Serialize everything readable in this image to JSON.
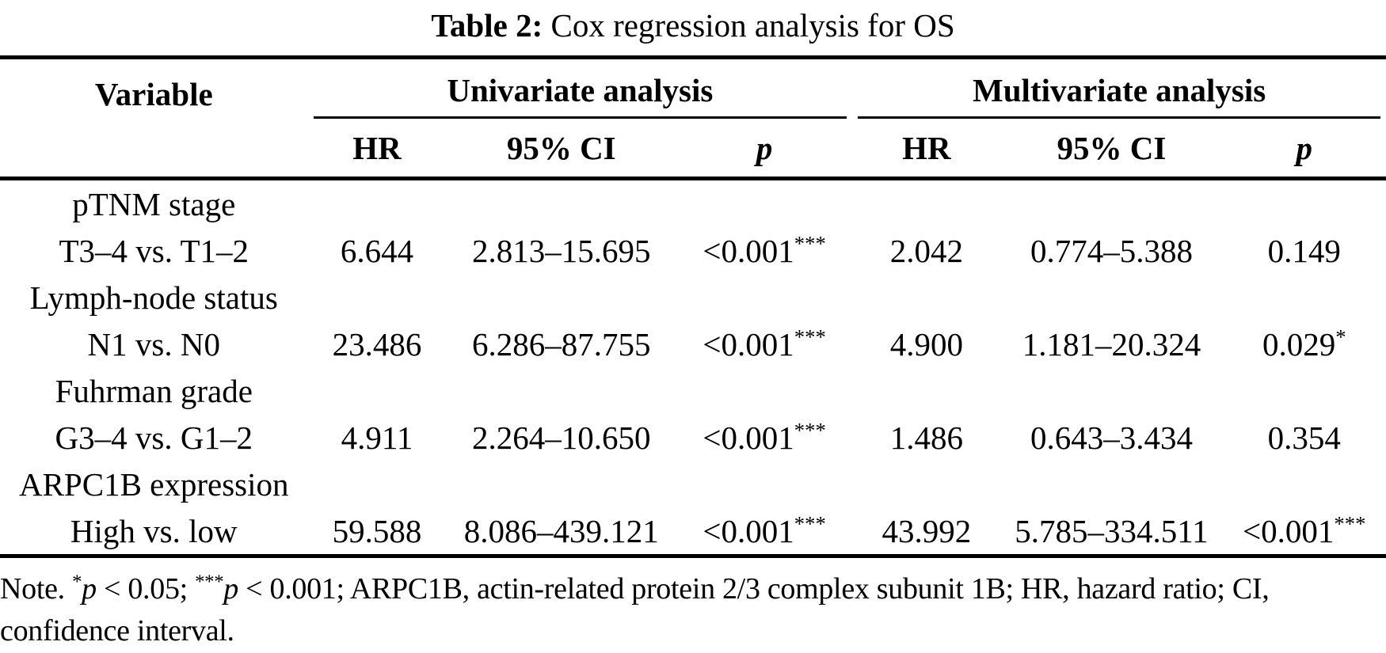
{
  "title": {
    "label": "Table 2:",
    "text": "Cox regression analysis for OS"
  },
  "table": {
    "variable_header": "Variable",
    "groups": [
      {
        "label": "Univariate analysis"
      },
      {
        "label": "Multivariate analysis"
      }
    ],
    "sub_headers": [
      "HR",
      "95% CI",
      "p",
      "HR",
      "95% CI",
      "p"
    ],
    "rows": [
      {
        "variable": "pTNM stage",
        "cells": [
          "",
          "",
          "",
          "",
          "",
          ""
        ]
      },
      {
        "variable": "T3–4 vs. T1–2",
        "cells": [
          "6.644",
          "2.813–15.695",
          "<0.001***",
          "2.042",
          "0.774–5.388",
          "0.149"
        ]
      },
      {
        "variable": "Lymph-node status",
        "cells": [
          "",
          "",
          "",
          "",
          "",
          ""
        ]
      },
      {
        "variable": "N1 vs. N0",
        "cells": [
          "23.486",
          "6.286–87.755",
          "<0.001***",
          "4.900",
          "1.181–20.324",
          "0.029*"
        ]
      },
      {
        "variable": "Fuhrman grade",
        "cells": [
          "",
          "",
          "",
          "",
          "",
          ""
        ]
      },
      {
        "variable": "G3–4 vs. G1–2",
        "cells": [
          "4.911",
          "2.264–10.650",
          "<0.001***",
          "1.486",
          "0.643–3.434",
          "0.354"
        ]
      },
      {
        "variable": "ARPC1B expression",
        "cells": [
          "",
          "",
          "",
          "",
          "",
          ""
        ]
      },
      {
        "variable": "High vs. low",
        "cells": [
          "59.588",
          "8.086–439.121",
          "<0.001***",
          "43.992",
          "5.785–334.511",
          "<0.001***"
        ]
      }
    ]
  },
  "footnote": {
    "parts": [
      {
        "text": "Note. "
      },
      {
        "sup": "*"
      },
      {
        "italic": "p"
      },
      {
        "text": " < 0.05; "
      },
      {
        "sup": "***"
      },
      {
        "italic": "p"
      },
      {
        "text": " < 0.001; ARPC1B, actin-related protein 2/3 complex subunit 1B; HR, hazard ratio; CI, confidence interval."
      }
    ]
  },
  "colors": {
    "text": "#000000",
    "background": "#ffffff",
    "rule": "#000000"
  }
}
